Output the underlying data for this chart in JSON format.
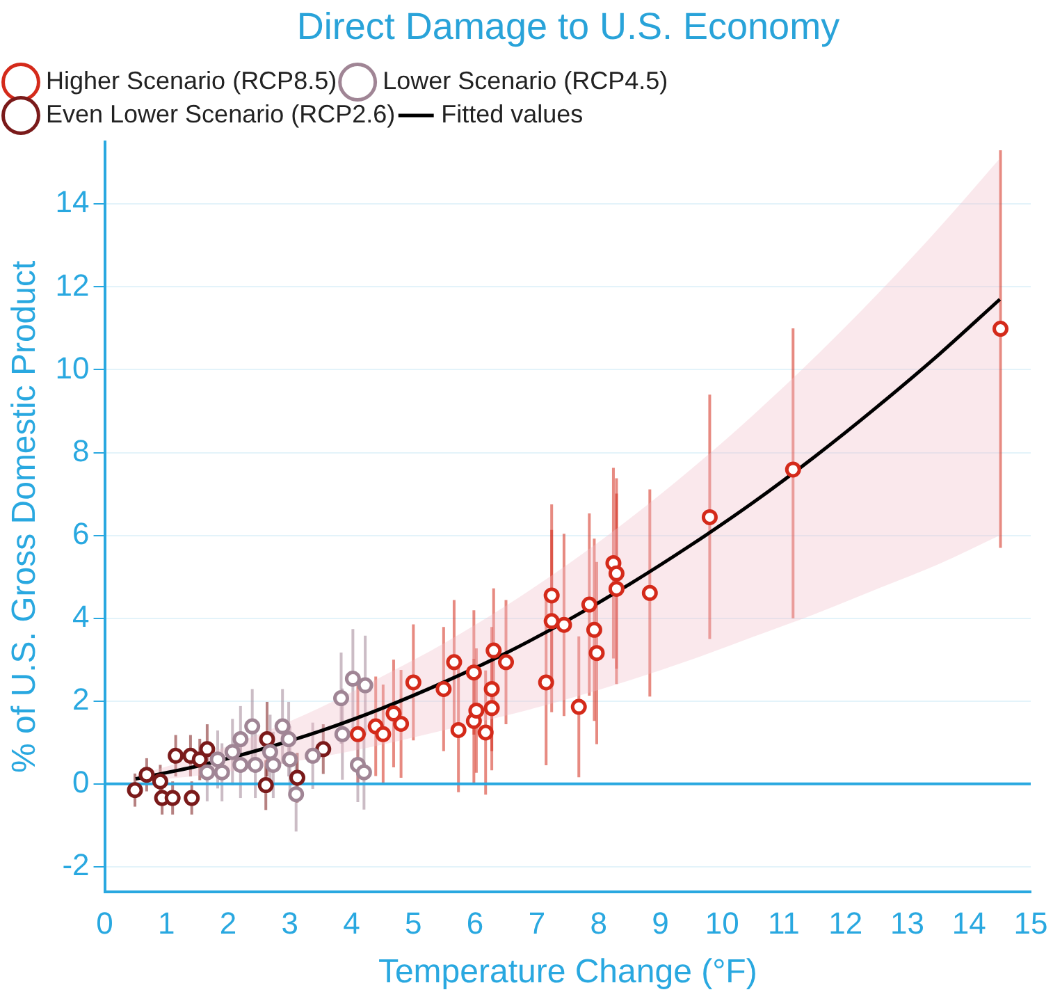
{
  "chart_data": {
    "type": "scatter",
    "title": "Direct Damage to U.S. Economy",
    "xlabel": "Temperature Change (°F)",
    "ylabel": "% of U.S. Gross Domestic Product",
    "xlim": [
      0,
      15
    ],
    "xticks": [
      0,
      1,
      2,
      3,
      4,
      5,
      6,
      7,
      8,
      9,
      10,
      11,
      12,
      13,
      14,
      15
    ],
    "ylim": [
      -2.6,
      15.5
    ],
    "yticks": [
      -2,
      0,
      2,
      4,
      6,
      8,
      10,
      12,
      14
    ],
    "grid": "y",
    "legend": "top left",
    "marker": "circle",
    "ref_lines": [
      {
        "axis": "y",
        "value": 0,
        "color": "#29a8e0"
      }
    ],
    "series": [
      {
        "name": "Higher Scenario (RCP8.5)",
        "color": "#d42a1a",
        "x": [
          4.1,
          4.39,
          4.51,
          4.68,
          4.8,
          5.0,
          5.49,
          5.66,
          5.98,
          5.73,
          5.98,
          6.17,
          6.02,
          6.27,
          6.27,
          6.3,
          6.5,
          7.15,
          7.24,
          7.24,
          7.44,
          7.68,
          7.85,
          7.93,
          7.97,
          8.24,
          8.29,
          8.29,
          8.83,
          9.8,
          11.15,
          14.51
        ],
        "values": [
          1.2,
          1.39,
          1.2,
          1.7,
          1.45,
          2.45,
          2.29,
          2.94,
          2.69,
          1.3,
          1.52,
          1.24,
          1.77,
          1.83,
          2.29,
          3.22,
          2.94,
          2.45,
          4.55,
          3.93,
          3.84,
          1.86,
          4.33,
          3.72,
          3.16,
          5.33,
          5.08,
          4.71,
          4.61,
          6.44,
          7.59,
          10.99
        ],
        "errors": [
          1.2,
          1.2,
          1.2,
          1.3,
          1.3,
          1.4,
          1.5,
          1.5,
          1.5,
          1.5,
          1.5,
          1.5,
          1.5,
          1.5,
          1.5,
          1.5,
          1.5,
          2,
          2.2,
          2.2,
          2.2,
          1.7,
          2.2,
          2.2,
          2.2,
          2.3,
          2.3,
          2.3,
          2.5,
          [
            3.5,
            9.4
          ],
          [
            4.0,
            11.0
          ],
          [
            5.7,
            15.3
          ]
        ]
      },
      {
        "name": "Lower Scenario (RCP4.5)",
        "color": "#a08595",
        "x": [
          1.83,
          1.66,
          1.9,
          2.07,
          2.2,
          2.2,
          2.39,
          2.44,
          2.68,
          2.73,
          2.88,
          2.98,
          3.0,
          3.1,
          3.37,
          3.83,
          3.85,
          4.02,
          4.22,
          4.1,
          4.2
        ],
        "values": [
          0.59,
          0.28,
          0.28,
          0.77,
          1.08,
          0.46,
          1.39,
          0.46,
          0.77,
          0.46,
          1.39,
          1.08,
          0.59,
          -0.25,
          0.68,
          2.07,
          1.2,
          2.54,
          2.38,
          0.46,
          0.28
        ],
        "errors": [
          0.7,
          0.7,
          0.7,
          0.8,
          0.8,
          0.8,
          0.9,
          0.8,
          0.9,
          0.8,
          0.9,
          0.9,
          0.8,
          0.9,
          0.8,
          1.1,
          1.1,
          1.2,
          1.2,
          0.9,
          0.9
        ]
      },
      {
        "name": "Even Lower Scenario (RCP2.6)",
        "color": "#7a1a1a",
        "x": [
          0.49,
          0.68,
          0.9,
          0.93,
          1.1,
          1.15,
          1.41,
          1.39,
          1.54,
          1.66,
          2.61,
          2.63,
          3.12,
          3.54
        ],
        "values": [
          -0.15,
          0.22,
          0.06,
          -0.34,
          -0.34,
          0.68,
          -0.34,
          0.68,
          0.59,
          0.84,
          -0.03,
          1.08,
          0.15,
          0.84
        ],
        "errors": [
          0.4,
          0.4,
          0.4,
          0.4,
          0.4,
          0.5,
          0.4,
          0.5,
          0.5,
          0.6,
          0.6,
          0.9,
          0.6,
          0.6
        ]
      },
      {
        "name": "Fitted values",
        "type": "line",
        "marker": "none",
        "color": "#000000",
        "x": [
          0.5,
          1.5,
          2.5,
          3.5,
          4.5,
          5.5,
          6.5,
          7.5,
          8.5,
          9.5,
          10.5,
          11.5,
          12.5,
          13.5,
          14.5
        ],
        "values": [
          0.12,
          0.43,
          0.82,
          1.28,
          1.83,
          2.46,
          3.16,
          3.95,
          4.82,
          5.77,
          6.79,
          7.9,
          9.09,
          10.35,
          11.7
        ],
        "lower": [
          0.05,
          0.2,
          0.4,
          0.65,
          0.95,
          1.3,
          1.65,
          2.05,
          2.5,
          3.0,
          3.55,
          4.1,
          4.7,
          5.3,
          6.0
        ],
        "upper": [
          0.2,
          0.65,
          1.2,
          1.85,
          2.6,
          3.4,
          4.3,
          5.3,
          6.4,
          7.6,
          8.9,
          10.3,
          11.8,
          13.4,
          15.1
        ]
      }
    ]
  }
}
